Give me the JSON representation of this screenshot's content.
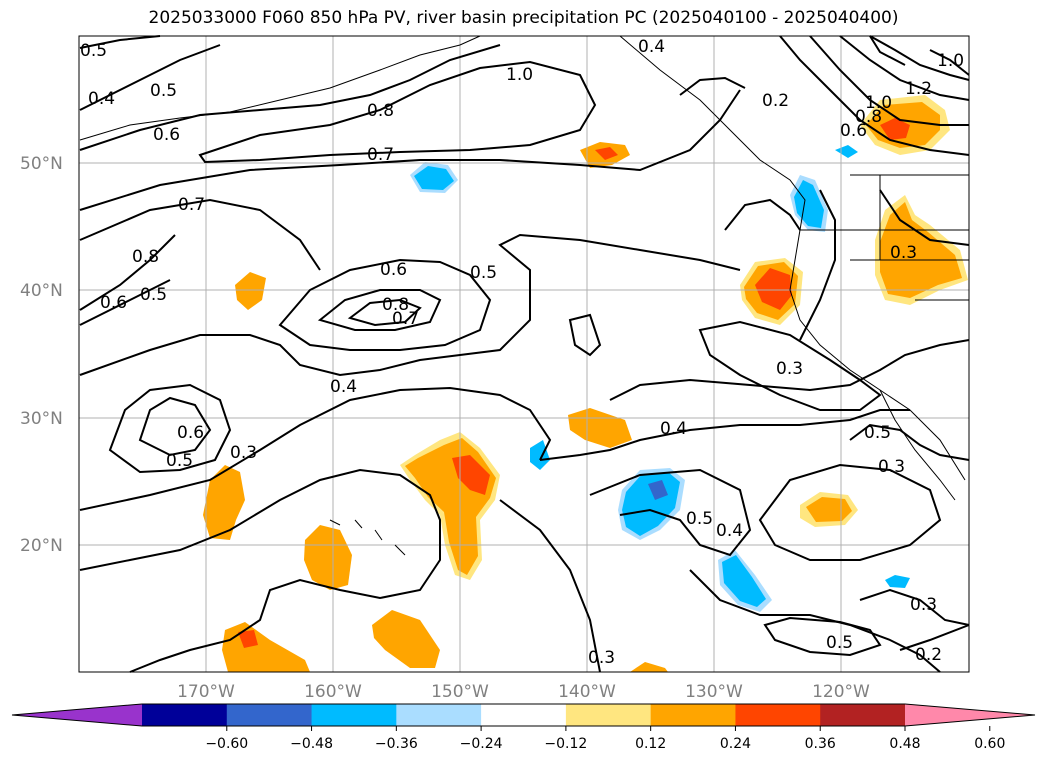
{
  "title": "2025033000 F060 850 hPa PV, river basin precipitation PC (2025040100 - 2025040400)",
  "map": {
    "lon_range": [
      -180,
      -110
    ],
    "lat_range": [
      10,
      60
    ],
    "lat_labels": [
      "20°N",
      "30°N",
      "40°N",
      "50°N"
    ],
    "lon_labels": [
      "170°W",
      "160°W",
      "150°W",
      "140°W",
      "130°W",
      "120°W"
    ],
    "contour_labels": [
      "0.5",
      "0.4",
      "0.5",
      "0.6",
      "0.8",
      "1.0",
      "0.7",
      "0.7",
      "0.8",
      "0.6",
      "0.5",
      "0.6",
      "0.8",
      "0.7",
      "0.5",
      "0.4",
      "0.3",
      "0.6",
      "0.5",
      "0.3",
      "0.4",
      "0.5",
      "0.4",
      "0.3",
      "0.3",
      "0.5",
      "0.3",
      "0.5",
      "0.3",
      "0.2",
      "0.2",
      "0.4",
      "1.0",
      "1.2",
      "0.8",
      "0.6",
      "0.3"
    ],
    "coastline_color": "#000000",
    "grid": true
  },
  "colorbar": {
    "ticks": [
      "−0.60",
      "−0.48",
      "−0.36",
      "−0.24",
      "−0.12",
      "0.12",
      "0.24",
      "0.36",
      "0.48",
      "0.60"
    ],
    "colors": [
      "#9933cc",
      "#000099",
      "#3366cc",
      "#00bbff",
      "#aaddff",
      "#ffffff",
      "#ffe680",
      "#ffa500",
      "#ff4500",
      "#b22222",
      "#ff88aa"
    ],
    "extend": "both"
  }
}
